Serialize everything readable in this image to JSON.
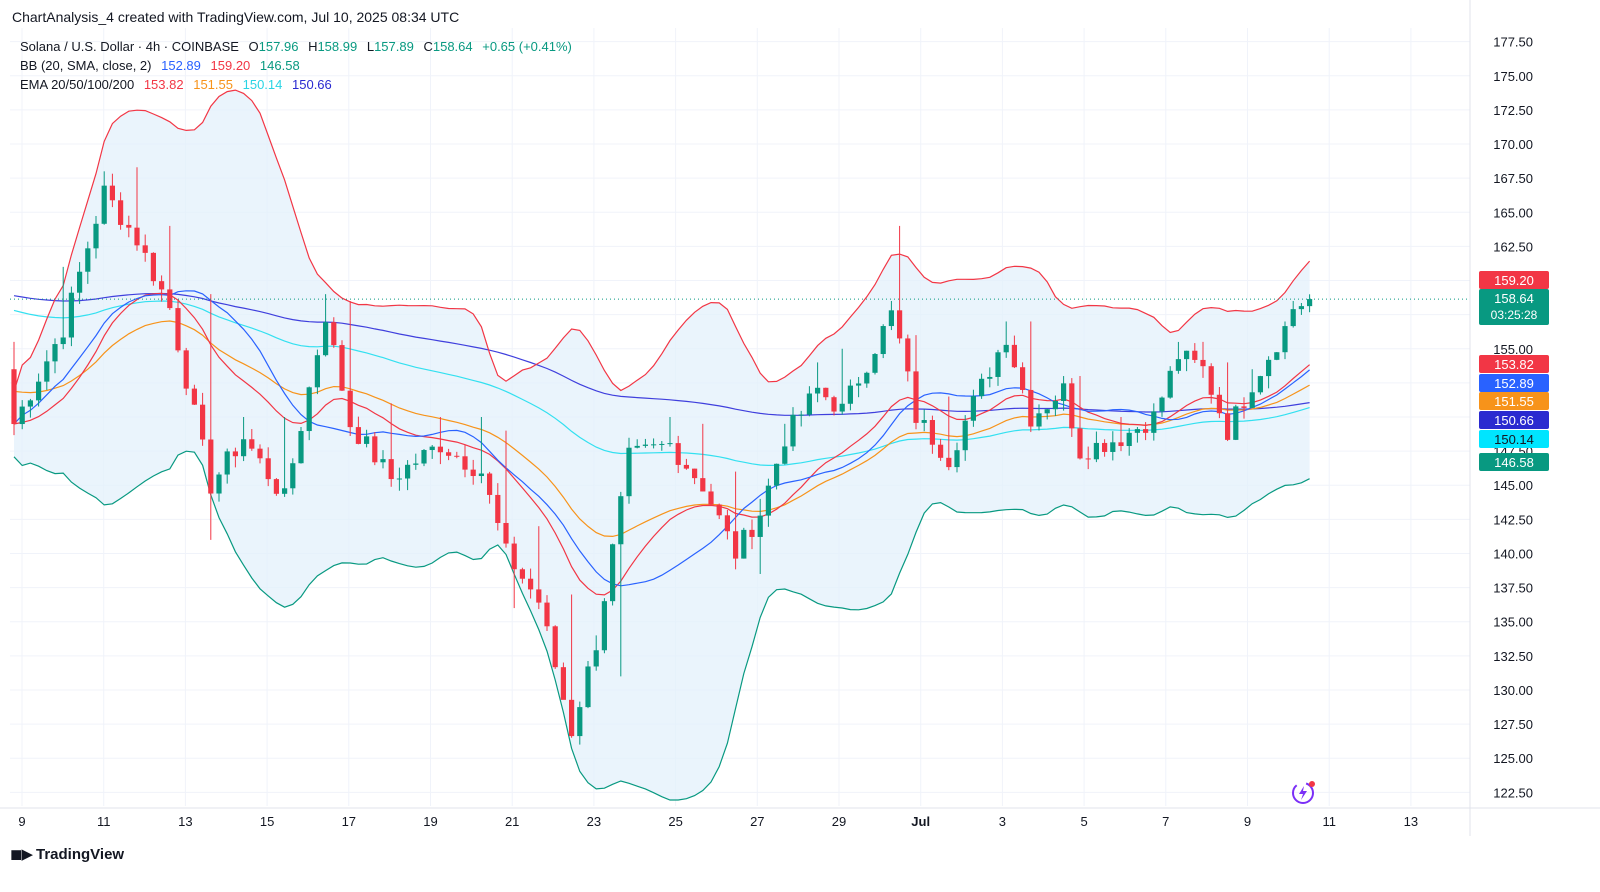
{
  "header": {
    "credit": "ChartAnalysis_4 created with TradingView.com, Jul 10, 2025 08:34 UTC"
  },
  "legend": {
    "symbol": "Solana / U.S. Dollar · 4h · COINBASE",
    "open_label": "O",
    "open": "157.96",
    "high_label": "H",
    "high": "158.99",
    "low_label": "L",
    "low": "157.89",
    "close_label": "C",
    "close": "158.64",
    "change": "+0.65 (+0.41%)",
    "bb_label": "BB (20, SMA, close, 2)",
    "bb_basis": "152.89",
    "bb_upper": "159.20",
    "bb_lower": "146.58",
    "ema_label": "EMA 20/50/100/200",
    "ema20": "153.82",
    "ema50": "151.55",
    "ema100": "150.14",
    "ema200": "150.66"
  },
  "footer": {
    "brand": "TradingView"
  },
  "colors": {
    "up": "#089981",
    "down": "#f23645",
    "bb_basis": "#2962ff",
    "bb_upper": "#f23645",
    "bb_lower": "#089981",
    "bb_fill": "#e3f0fb",
    "ema20": "#f23645",
    "ema50": "#f7931a",
    "ema100": "#33e0f0",
    "ema200": "#3f3fdd"
  },
  "chart_data": {
    "type": "candlestick",
    "title": "Solana / U.S. Dollar · 4h · COINBASE",
    "ylim": [
      121.5,
      178.5
    ],
    "y_ticks": [
      122.5,
      125,
      127.5,
      130,
      132.5,
      135,
      137.5,
      140,
      142.5,
      145,
      147.5,
      150,
      152.5,
      155,
      157.5,
      160,
      162.5,
      165,
      167.5,
      170,
      172.5,
      175,
      177.5
    ],
    "x_ticks": [
      "9",
      "11",
      "13",
      "15",
      "17",
      "19",
      "21",
      "23",
      "25",
      "27",
      "29",
      "Jul",
      "3",
      "5",
      "7",
      "9",
      "11",
      "13"
    ],
    "grid": true,
    "price_tags": [
      {
        "value": 159.2,
        "label": "159.20",
        "color": "#f23645"
      },
      {
        "value": 158.64,
        "label": "158.64",
        "sub": "03:25:28",
        "color": "#089981"
      },
      {
        "value": 153.82,
        "label": "153.82",
        "color": "#f23645"
      },
      {
        "value": 152.89,
        "label": "152.89",
        "color": "#2962ff"
      },
      {
        "value": 151.55,
        "label": "151.55",
        "color": "#f7931a"
      },
      {
        "value": 150.66,
        "label": "150.66",
        "color": "#2a2ad0"
      },
      {
        "value": 150.14,
        "label": "150.14",
        "color": "#00e5ff"
      },
      {
        "value": 146.58,
        "label": "146.58",
        "color": "#089981"
      }
    ],
    "candle_anchors": [
      [
        0,
        153.5,
        149.5,
        155.5
      ],
      [
        6,
        150,
        156.5,
        161
      ],
      [
        11,
        162,
        166.5,
        168
      ],
      [
        15,
        167.5,
        163,
        168.3
      ],
      [
        19,
        163,
        158,
        164
      ],
      [
        24,
        158,
        145,
        159
      ],
      [
        28,
        146,
        148.5,
        150
      ],
      [
        33,
        148.5,
        144,
        150
      ],
      [
        38,
        144,
        157.5,
        159
      ],
      [
        41,
        157.5,
        149.5,
        158.5
      ],
      [
        46,
        149.5,
        145.5,
        151
      ],
      [
        52,
        145.5,
        148,
        150
      ],
      [
        57,
        148,
        146,
        150
      ],
      [
        60,
        146,
        140,
        149
      ],
      [
        64,
        140,
        136.5,
        142
      ],
      [
        68,
        136.5,
        127,
        137
      ],
      [
        71,
        127,
        133.5,
        134
      ],
      [
        75,
        133.5,
        147,
        148
      ],
      [
        80,
        147,
        148,
        150
      ],
      [
        84,
        148,
        145,
        149.5
      ],
      [
        88,
        145,
        140,
        146
      ],
      [
        91,
        140,
        143,
        144
      ],
      [
        94,
        143,
        148.5,
        149.5
      ],
      [
        98,
        148.5,
        152,
        154
      ],
      [
        101,
        152,
        150.5,
        155
      ],
      [
        107,
        150.5,
        157.5,
        158.5
      ],
      [
        108,
        157.5,
        155.5,
        164
      ],
      [
        110,
        155.5,
        150,
        156
      ],
      [
        114,
        150,
        147,
        151.5
      ],
      [
        117,
        147,
        151,
        152
      ],
      [
        121,
        151,
        156,
        157
      ],
      [
        124,
        156,
        150,
        157
      ],
      [
        128,
        150,
        152,
        153
      ],
      [
        130,
        152,
        147.5,
        153
      ],
      [
        135,
        147.5,
        148.5,
        150
      ],
      [
        139,
        148.5,
        150,
        151
      ],
      [
        142,
        150,
        154.5,
        155.5
      ],
      [
        145,
        154.5,
        153.5,
        155.5
      ],
      [
        148,
        153.5,
        149,
        154
      ],
      [
        151,
        149,
        152.5,
        153.5
      ],
      [
        155,
        152.5,
        156.5,
        157
      ],
      [
        156,
        156.5,
        158,
        158.5
      ],
      [
        158,
        158,
        158.64,
        158.99
      ]
    ]
  }
}
